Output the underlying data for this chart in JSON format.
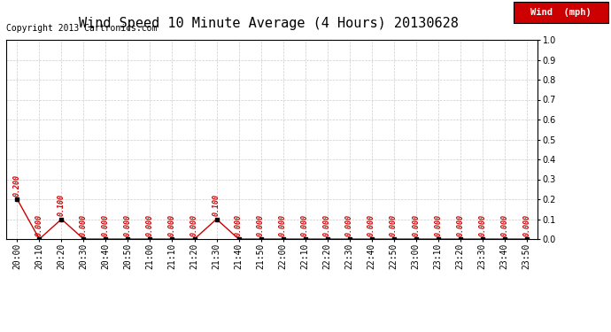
{
  "title": "Wind Speed 10 Minute Average (4 Hours) 20130628",
  "copyright": "Copyright 2013 Cartronics.com",
  "legend_label": "Wind  (mph)",
  "legend_bg": "#cc0000",
  "legend_text_color": "#ffffff",
  "line_color": "#cc0000",
  "point_color": "#000000",
  "label_color": "#cc0000",
  "background_color": "#ffffff",
  "grid_color": "#cccccc",
  "ylim": [
    0.0,
    1.0
  ],
  "yticks": [
    0.0,
    0.1,
    0.2,
    0.3,
    0.4,
    0.5,
    0.6,
    0.7,
    0.8,
    0.9,
    1.0
  ],
  "times": [
    "20:00",
    "20:10",
    "20:20",
    "20:30",
    "20:40",
    "20:50",
    "21:00",
    "21:10",
    "21:20",
    "21:30",
    "21:40",
    "21:50",
    "22:00",
    "22:10",
    "22:20",
    "22:30",
    "22:40",
    "22:50",
    "23:00",
    "23:10",
    "23:20",
    "23:30",
    "23:40",
    "23:50"
  ],
  "values": [
    0.2,
    0.0,
    0.1,
    0.0,
    0.0,
    0.0,
    0.0,
    0.0,
    0.0,
    0.1,
    0.0,
    0.0,
    0.0,
    0.0,
    0.0,
    0.0,
    0.0,
    0.0,
    0.0,
    0.0,
    0.0,
    0.0,
    0.0,
    0.0
  ],
  "title_fontsize": 11,
  "copyright_fontsize": 7,
  "tick_fontsize": 7,
  "label_fontsize": 6
}
